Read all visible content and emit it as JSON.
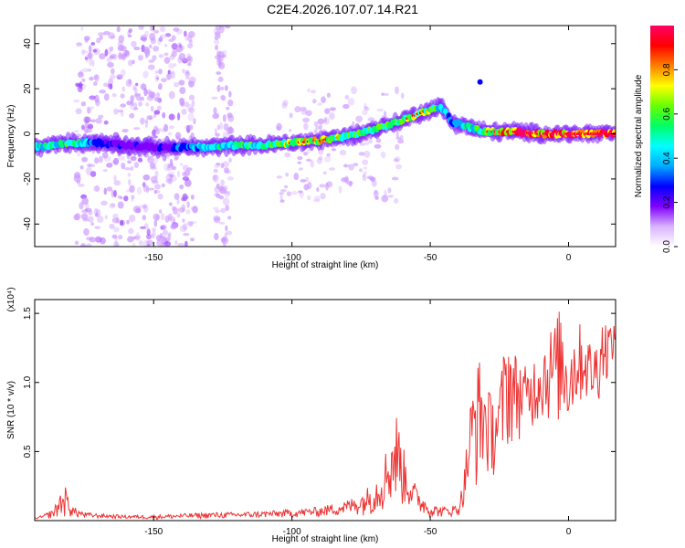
{
  "title": "C2E4.2026.107.07.14.R21",
  "chart_data": [
    {
      "type": "heatmap",
      "xlabel": "Height of straight line (km)",
      "ylabel": "Frequency (Hz)",
      "xlim": [
        -193,
        17
      ],
      "ylim": [
        -50,
        48
      ],
      "xticks": [
        "-150",
        "-100",
        "-50",
        "0"
      ],
      "yticks": [
        "40",
        "20",
        "0",
        "-20",
        "-40"
      ],
      "colorbar": {
        "label": "Normalized spectral amplitude",
        "range": [
          0,
          1
        ],
        "ticks": [
          "0.0",
          "0.2",
          "0.4",
          "0.6",
          "0.8"
        ],
        "colors": [
          "#ffffff",
          "#d9b3ff",
          "#8000ff",
          "#0000ff",
          "#00aaff",
          "#00ffff",
          "#00ff66",
          "#66ff00",
          "#ffff00",
          "#ff8000",
          "#ff0000",
          "#ff0066"
        ]
      },
      "ridge": {
        "x": [
          -193,
          -180,
          -170,
          -160,
          -150,
          -140,
          -130,
          -120,
          -110,
          -100,
          -90,
          -80,
          -70,
          -60,
          -52,
          -46,
          -42,
          -38,
          -34,
          -30,
          -20,
          -10,
          0,
          10,
          17
        ],
        "y": [
          -6,
          -4,
          -4,
          -5,
          -6,
          -6,
          -6,
          -5,
          -5,
          -4,
          -3,
          -1,
          2,
          6,
          10,
          12,
          5,
          4,
          2,
          1,
          1,
          0,
          0,
          0,
          0
        ],
        "amplitude": [
          0.4,
          0.5,
          0.3,
          0.2,
          0.2,
          0.3,
          0.4,
          0.5,
          0.5,
          0.6,
          0.7,
          0.5,
          0.5,
          0.6,
          0.6,
          0.5,
          0.3,
          0.4,
          0.5,
          0.6,
          0.9,
          0.8,
          0.9,
          0.9,
          0.9
        ]
      },
      "scatter_regions": [
        {
          "x": [
            -178,
            -135
          ],
          "y": [
            -50,
            48
          ],
          "amplitude": 0.15
        },
        {
          "x": [
            -128,
            -122
          ],
          "y": [
            -50,
            48
          ],
          "amplitude": 0.1
        },
        {
          "x": [
            -105,
            -60
          ],
          "y": [
            -30,
            20
          ],
          "amplitude": 0.1
        }
      ],
      "isolated_points": [
        {
          "x": -32,
          "y": 23,
          "amplitude": 0.25
        }
      ]
    },
    {
      "type": "line",
      "xlabel": "Height of straight line (km)",
      "ylabel": "SNR (10 * v/v)",
      "multiplier_label": "(x10⁴)",
      "xlim": [
        -193,
        17
      ],
      "ylim": [
        0,
        1.6
      ],
      "xticks": [
        "-150",
        "-100",
        "-50",
        "0"
      ],
      "yticks": [
        "1.5",
        "1.0",
        "0.5"
      ],
      "series": [
        {
          "color": "#ee3333",
          "envelope": {
            "x": [
              -193,
              -190,
              -186,
              -184,
              -182,
              -179,
              -175,
              -170,
              -160,
              -150,
              -140,
              -130,
              -120,
              -110,
              -100,
              -90,
              -80,
              -75,
              -70,
              -67,
              -65,
              -62,
              -60,
              -57,
              -55,
              -50,
              -45,
              -40,
              -38,
              -36,
              -34,
              -32,
              -30,
              -28,
              -25,
              -22,
              -20,
              -15,
              -10,
              -5,
              -3,
              0,
              3,
              6,
              9,
              12,
              14,
              17
            ],
            "y": [
              0.02,
              0.04,
              0.09,
              0.2,
              0.25,
              0.1,
              0.06,
              0.05,
              0.04,
              0.04,
              0.05,
              0.06,
              0.06,
              0.07,
              0.08,
              0.1,
              0.15,
              0.2,
              0.3,
              0.45,
              0.6,
              0.8,
              0.55,
              0.35,
              0.25,
              0.12,
              0.1,
              0.12,
              0.3,
              0.8,
              1.1,
              1.2,
              1.05,
              0.9,
              1.0,
              1.45,
              1.25,
              1.1,
              1.3,
              1.45,
              1.55,
              1.3,
              1.45,
              1.4,
              1.25,
              1.5,
              1.45,
              1.4
            ]
          },
          "baseline": {
            "x": [
              -193,
              -180,
              -150,
              -100,
              -70,
              -62,
              -50,
              -40,
              -36,
              -32,
              -28,
              -25,
              -20,
              -10,
              0,
              5,
              10,
              17
            ],
            "y": [
              0.01,
              0.02,
              0.01,
              0.02,
              0.04,
              0.1,
              0.02,
              0.03,
              0.15,
              0.25,
              0.3,
              0.35,
              0.55,
              0.7,
              0.65,
              0.85,
              0.8,
              1.2
            ]
          }
        }
      ]
    }
  ]
}
